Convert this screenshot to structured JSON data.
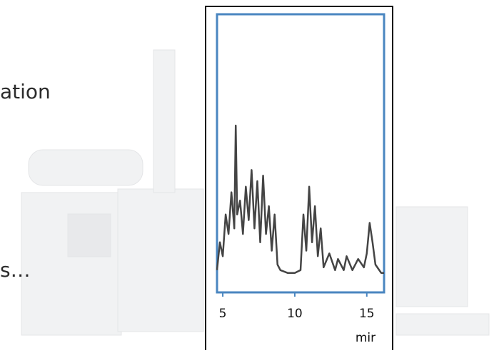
{
  "slide_text": [
    "ation",
    "s…"
  ],
  "chart_data": {
    "type": "line",
    "x_label": "mir",
    "x": [
      4.6,
      4.8,
      5.0,
      5.2,
      5.4,
      5.6,
      5.8,
      5.9,
      6.0,
      6.2,
      6.4,
      6.6,
      6.8,
      7.0,
      7.2,
      7.4,
      7.6,
      7.8,
      8.0,
      8.2,
      8.4,
      8.6,
      8.8,
      9.0,
      9.5,
      10.0,
      10.4,
      10.6,
      10.8,
      11.0,
      11.2,
      11.4,
      11.6,
      11.8,
      12.0,
      12.4,
      12.8,
      13.0,
      13.4,
      13.6,
      14.0,
      14.4,
      14.8,
      15.0,
      15.2,
      15.4,
      15.6,
      16.0,
      16.2
    ],
    "series": [
      {
        "color": "#444444",
        "values": [
          8,
          18,
          13,
          28,
          21,
          36,
          23,
          60,
          28,
          33,
          21,
          38,
          26,
          44,
          23,
          40,
          18,
          42,
          21,
          31,
          15,
          28,
          10,
          8,
          7,
          7,
          8,
          28,
          15,
          38,
          18,
          31,
          13,
          23,
          9,
          14,
          8,
          12,
          8,
          13,
          8,
          12,
          9,
          14,
          25,
          18,
          10,
          7,
          7
        ]
      }
    ],
    "xlim": [
      4.6,
      16.2
    ],
    "xticks": [
      5,
      10,
      15
    ],
    "ylim": [
      0,
      100
    ],
    "frame_color": "#4a86c0"
  }
}
